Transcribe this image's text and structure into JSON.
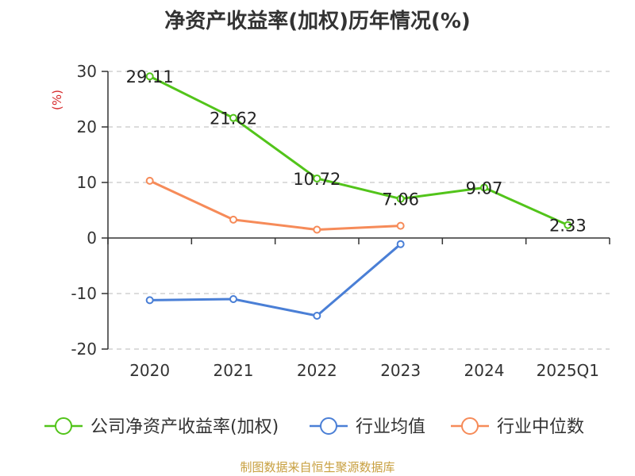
{
  "title": "净资产收益率(加权)历年情况(%)",
  "source": "制图数据来自恒生聚源数据库",
  "chart_data": {
    "type": "line",
    "title": "净资产收益率(加权)历年情况(%)",
    "ylabel": "(%)",
    "categories": [
      "2020",
      "2021",
      "2022",
      "2023",
      "2024",
      "2025Q1"
    ],
    "ylim": [
      -20,
      30
    ],
    "yticks": [
      30,
      20,
      10,
      0,
      -10,
      -20
    ],
    "grid": true,
    "legend_position": "bottom",
    "series": [
      {
        "name": "公司净资产收益率(加权)",
        "color": "#52c41a",
        "values": [
          29.11,
          21.62,
          10.72,
          7.06,
          9.07,
          2.33
        ],
        "labels": [
          "29.11",
          "21.62",
          "10.72",
          "7.06",
          "9.07",
          "2.33"
        ]
      },
      {
        "name": "行业均值",
        "color": "#4a7fd6",
        "values": [
          -11.2,
          -11.0,
          -14.0,
          -1.1,
          null,
          null
        ]
      },
      {
        "name": "行业中位数",
        "color": "#f68b59",
        "values": [
          10.3,
          3.3,
          1.5,
          2.2,
          null,
          null
        ]
      }
    ]
  }
}
